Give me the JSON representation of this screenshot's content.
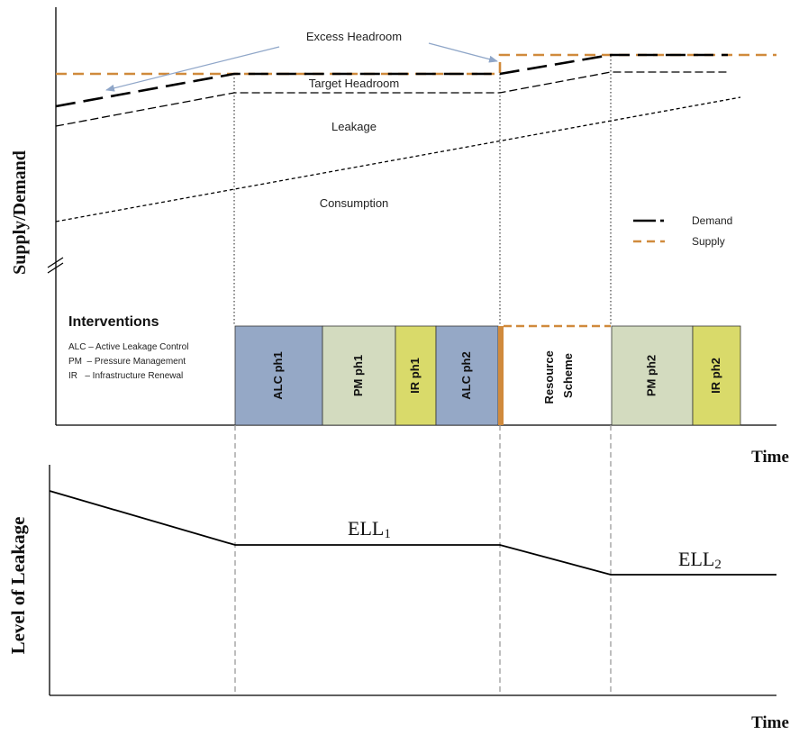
{
  "top_panel": {
    "y_axis_label": "Supply/Demand",
    "x_axis_label": "Time",
    "region_labels": {
      "excess_headroom": "Excess Headroom",
      "target_headroom": "Target Headroom",
      "leakage": "Leakage",
      "consumption": "Consumption"
    },
    "legend": [
      {
        "label": "Demand",
        "color": "#000000",
        "style": "long-dash-dot"
      },
      {
        "label": "Supply",
        "color": "#d08a3c",
        "style": "dash"
      }
    ],
    "interventions": {
      "title": "Interventions",
      "key": [
        "ALC – Active Leakage Control",
        "PM  – Pressure Management",
        "IR   – Infrastructure Renewal"
      ],
      "blocks": [
        {
          "label": "ALC ph1",
          "color": "#95a8c6"
        },
        {
          "label": "PM ph1",
          "color": "#d3dbbf"
        },
        {
          "label": "IR ph1",
          "color": "#d9da6a"
        },
        {
          "label": "ALC ph2",
          "color": "#95a8c6"
        },
        {
          "label": "Resource Scheme",
          "color": "#ffffff"
        },
        {
          "label": "PM ph2",
          "color": "#d3dbbf"
        },
        {
          "label": "IR ph2",
          "color": "#d9da6a"
        }
      ]
    }
  },
  "bottom_panel": {
    "y_axis_label": "Level of Leakage",
    "x_axis_label": "Time",
    "annotations": [
      {
        "main": "ELL",
        "sub": "1"
      },
      {
        "main": "ELL",
        "sub": "2"
      }
    ]
  },
  "colors": {
    "supply": "#d08a3c",
    "arrow": "#8fa6c8",
    "alc": "#95a8c6",
    "pm": "#d3dbbf",
    "ir": "#d9da6a",
    "resource_bar": "#d08a3c"
  }
}
